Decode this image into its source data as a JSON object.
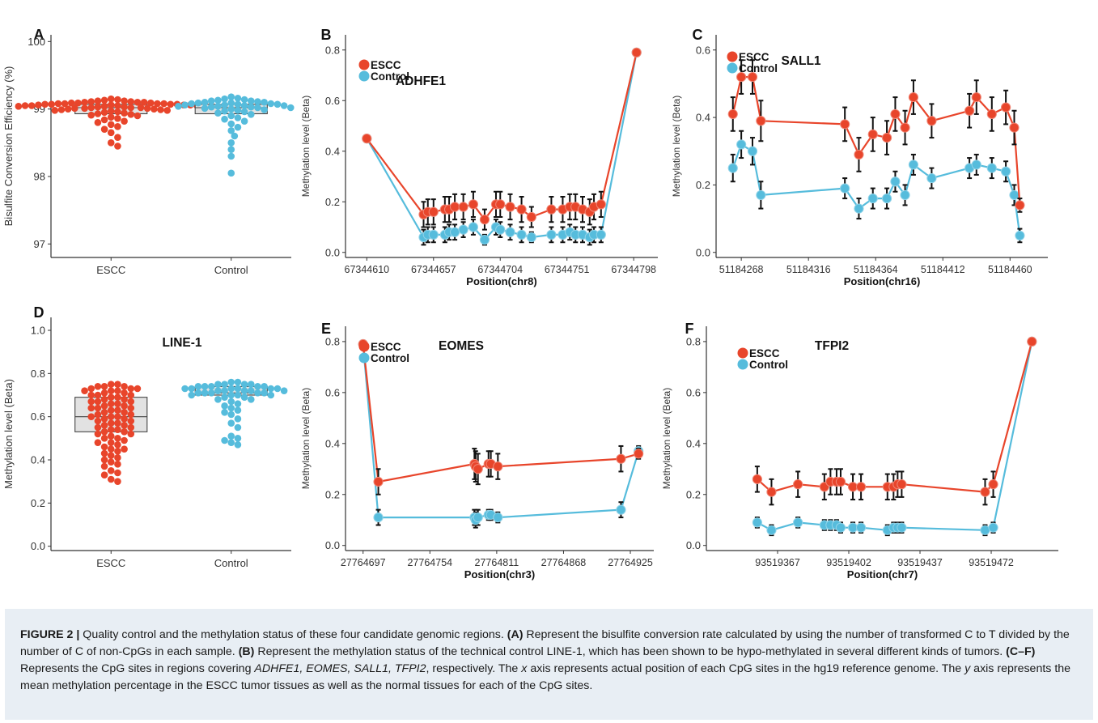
{
  "caption": {
    "figure_label": "FIGURE 2 |",
    "s1": " Quality control and the methylation status of these four candidate genomic regions. ",
    "a_ref": "(A)",
    "s2": " Represent the bisulfite conversion rate calculated by using the number of transformed C to T divided by the number of C of non-CpGs in each sample. ",
    "b_ref": "(B)",
    "s3": " Represent the methylation status of the technical control LINE-1, which has been shown to be hypo-methylated in several different kinds of tumors. ",
    "cf_ref": "(C–F)",
    "s4": " Represents the CpG sites in regions covering ",
    "genes": "ADHFE1, EOMES, SALL1, TFPI2",
    "s5": ", respectively. The ",
    "x_italic": "x",
    "s6": " axis represents actual position of each CpG sites in the hg19 reference genome. The ",
    "y_italic": "y",
    "s7": " axis represents the mean methylation percentage in the ESCC tumor tissues as well as the normal tissues for each of the CpG sites."
  },
  "colors": {
    "escc": "#e8452b",
    "control": "#56bcdc",
    "box_fill": "#e2e2e2",
    "error": "#111111"
  },
  "chart_data": [
    {
      "panel": "A",
      "type": "scatter",
      "subtype": "beeswarm-box",
      "title": "",
      "xlabel": "",
      "ylabel": "Bisulfite Conversion Efficiency (%)",
      "ylim": [
        96.8,
        100.1
      ],
      "yticks": [
        97,
        98,
        99,
        100
      ],
      "categories": [
        "ESCC",
        "Control"
      ],
      "series": [
        {
          "name": "ESCC",
          "color": "#e8452b",
          "box": {
            "q1": 98.93,
            "median": 99.02,
            "q3": 99.07
          },
          "values": [
            99.15,
            99.14,
            99.13,
            99.12,
            99.12,
            99.11,
            99.11,
            99.1,
            99.1,
            99.1,
            99.09,
            99.09,
            99.09,
            99.08,
            99.08,
            99.08,
            99.08,
            99.07,
            99.07,
            99.07,
            99.07,
            99.06,
            99.06,
            99.06,
            99.06,
            99.05,
            99.05,
            99.05,
            99.05,
            99.04,
            99.04,
            99.04,
            99.03,
            99.03,
            99.03,
            99.02,
            99.02,
            99.02,
            99.01,
            99.01,
            99.01,
            99.0,
            99.0,
            98.99,
            98.99,
            98.98,
            98.98,
            98.97,
            98.96,
            98.95,
            98.94,
            98.93,
            98.92,
            98.91,
            98.9,
            98.88,
            98.86,
            98.84,
            98.82,
            98.8,
            98.77,
            98.74,
            98.7,
            98.65,
            98.58,
            98.5,
            98.45
          ]
        },
        {
          "name": "Control",
          "color": "#56bcdc",
          "box": {
            "q1": 98.93,
            "median": 99.02,
            "q3": 99.07
          },
          "values": [
            99.18,
            99.16,
            99.15,
            99.14,
            99.13,
            99.12,
            99.12,
            99.11,
            99.1,
            99.1,
            99.09,
            99.09,
            99.08,
            99.08,
            99.07,
            99.07,
            99.06,
            99.06,
            99.05,
            99.05,
            99.04,
            99.04,
            99.03,
            99.03,
            99.02,
            99.02,
            99.01,
            99.0,
            98.99,
            98.98,
            98.97,
            98.96,
            98.94,
            98.92,
            98.9,
            98.87,
            98.85,
            98.82,
            98.78,
            98.73,
            98.68,
            98.6,
            98.5,
            98.4,
            98.3,
            98.05
          ]
        }
      ]
    },
    {
      "panel": "B",
      "type": "line",
      "title": "ADHFE1",
      "xlabel": "Position(chr8)",
      "ylabel": "Methylation level (Beta)",
      "xlim": [
        67344595,
        67344815
      ],
      "ylim": [
        -0.02,
        0.86
      ],
      "xticks": [
        67344610,
        67344657,
        67344704,
        67344751,
        67344798
      ],
      "yticks": [
        0.0,
        0.2,
        0.4,
        0.6,
        0.8
      ],
      "ytick_format": "1",
      "legend": "top-left",
      "series": [
        {
          "name": "ESCC",
          "color": "#e8452b",
          "x": [
            67344610,
            67344650,
            67344653,
            67344657,
            67344665,
            67344668,
            67344672,
            67344678,
            67344685,
            67344693,
            67344701,
            67344704,
            67344711,
            67344719,
            67344726,
            67344740,
            67344748,
            67344753,
            67344757,
            67344762,
            67344767,
            67344770,
            67344775,
            67344800
          ],
          "y": [
            0.45,
            0.15,
            0.16,
            0.16,
            0.17,
            0.17,
            0.18,
            0.18,
            0.19,
            0.13,
            0.19,
            0.19,
            0.18,
            0.17,
            0.14,
            0.17,
            0.17,
            0.18,
            0.18,
            0.17,
            0.16,
            0.18,
            0.19,
            0.79
          ],
          "err": [
            0,
            0.05,
            0.05,
            0.05,
            0.05,
            0.05,
            0.05,
            0.05,
            0.05,
            0.04,
            0.05,
            0.05,
            0.05,
            0.05,
            0.04,
            0.05,
            0.05,
            0.05,
            0.05,
            0.05,
            0.05,
            0.05,
            0.05,
            0
          ]
        },
        {
          "name": "Control",
          "color": "#56bcdc",
          "x": [
            67344610,
            67344650,
            67344653,
            67344657,
            67344665,
            67344668,
            67344672,
            67344678,
            67344685,
            67344693,
            67344701,
            67344704,
            67344711,
            67344719,
            67344726,
            67344740,
            67344748,
            67344753,
            67344757,
            67344762,
            67344767,
            67344770,
            67344775,
            67344800
          ],
          "y": [
            0.45,
            0.06,
            0.07,
            0.07,
            0.07,
            0.08,
            0.08,
            0.09,
            0.1,
            0.05,
            0.1,
            0.09,
            0.08,
            0.07,
            0.06,
            0.07,
            0.07,
            0.08,
            0.07,
            0.07,
            0.06,
            0.07,
            0.07,
            0.79
          ],
          "err": [
            0,
            0.03,
            0.03,
            0.03,
            0.03,
            0.03,
            0.03,
            0.03,
            0.03,
            0.02,
            0.03,
            0.03,
            0.03,
            0.03,
            0.02,
            0.03,
            0.03,
            0.03,
            0.03,
            0.03,
            0.03,
            0.03,
            0.03,
            0
          ]
        }
      ]
    },
    {
      "panel": "C",
      "type": "line",
      "title": "SALL1",
      "xlabel": "Position(chr16)",
      "ylabel": "Methylation level (Beta)",
      "xlim": [
        51184250,
        51184487
      ],
      "ylim": [
        -0.015,
        0.645
      ],
      "xticks": [
        51184268,
        51184316,
        51184364,
        51184412,
        51184460
      ],
      "yticks": [
        0.0,
        0.2,
        0.4,
        0.6
      ],
      "ytick_format": "1",
      "legend": "top-left",
      "series": [
        {
          "name": "ESCC",
          "color": "#e8452b",
          "x": [
            51184262,
            51184268,
            51184276,
            51184282,
            51184342,
            51184352,
            51184362,
            51184372,
            51184378,
            51184385,
            51184391,
            51184404,
            51184431,
            51184436,
            51184447,
            51184457,
            51184463,
            51184467
          ],
          "y": [
            0.41,
            0.52,
            0.52,
            0.39,
            0.38,
            0.29,
            0.35,
            0.34,
            0.41,
            0.37,
            0.46,
            0.39,
            0.42,
            0.46,
            0.41,
            0.43,
            0.37,
            0.14
          ],
          "err": [
            0.05,
            0.05,
            0.05,
            0.06,
            0.05,
            0.05,
            0.05,
            0.05,
            0.05,
            0.05,
            0.05,
            0.05,
            0.05,
            0.05,
            0.05,
            0.05,
            0.05,
            0.02
          ]
        },
        {
          "name": "Control",
          "color": "#56bcdc",
          "x": [
            51184262,
            51184268,
            51184276,
            51184282,
            51184342,
            51184352,
            51184362,
            51184372,
            51184378,
            51184385,
            51184391,
            51184404,
            51184431,
            51184436,
            51184447,
            51184457,
            51184463,
            51184467
          ],
          "y": [
            0.25,
            0.32,
            0.3,
            0.17,
            0.19,
            0.13,
            0.16,
            0.16,
            0.21,
            0.17,
            0.26,
            0.22,
            0.25,
            0.26,
            0.25,
            0.24,
            0.17,
            0.05
          ],
          "err": [
            0.04,
            0.04,
            0.04,
            0.04,
            0.03,
            0.03,
            0.03,
            0.03,
            0.03,
            0.03,
            0.03,
            0.03,
            0.03,
            0.03,
            0.03,
            0.03,
            0.03,
            0.02
          ]
        }
      ]
    },
    {
      "panel": "D",
      "type": "scatter",
      "subtype": "beeswarm-box",
      "title": "LINE-1",
      "xlabel": "",
      "ylabel": "Methylation level (Beta)",
      "ylim": [
        -0.02,
        1.06
      ],
      "yticks": [
        0.0,
        0.2,
        0.4,
        0.6,
        0.8,
        1.0
      ],
      "ytick_format": "1",
      "categories": [
        "ESCC",
        "Control"
      ],
      "series": [
        {
          "name": "ESCC",
          "color": "#e8452b",
          "box": {
            "q1": 0.53,
            "median": 0.6,
            "q3": 0.69
          },
          "values": [
            0.75,
            0.75,
            0.74,
            0.74,
            0.74,
            0.73,
            0.73,
            0.73,
            0.72,
            0.72,
            0.72,
            0.71,
            0.71,
            0.7,
            0.7,
            0.7,
            0.69,
            0.69,
            0.68,
            0.68,
            0.67,
            0.67,
            0.67,
            0.66,
            0.66,
            0.65,
            0.65,
            0.64,
            0.64,
            0.64,
            0.63,
            0.63,
            0.62,
            0.62,
            0.61,
            0.61,
            0.6,
            0.6,
            0.6,
            0.59,
            0.59,
            0.58,
            0.58,
            0.57,
            0.57,
            0.56,
            0.56,
            0.55,
            0.55,
            0.54,
            0.54,
            0.53,
            0.53,
            0.52,
            0.52,
            0.51,
            0.5,
            0.5,
            0.49,
            0.48,
            0.48,
            0.47,
            0.46,
            0.45,
            0.45,
            0.44,
            0.43,
            0.42,
            0.41,
            0.4,
            0.39,
            0.38,
            0.37,
            0.35,
            0.34,
            0.33,
            0.31,
            0.3
          ]
        },
        {
          "name": "Control",
          "color": "#56bcdc",
          "box": {
            "q1": 0.7,
            "median": 0.71,
            "q3": 0.74
          },
          "values": [
            0.76,
            0.76,
            0.75,
            0.75,
            0.75,
            0.75,
            0.74,
            0.74,
            0.74,
            0.74,
            0.74,
            0.73,
            0.73,
            0.73,
            0.73,
            0.73,
            0.73,
            0.72,
            0.72,
            0.72,
            0.72,
            0.72,
            0.71,
            0.71,
            0.71,
            0.71,
            0.71,
            0.7,
            0.7,
            0.7,
            0.7,
            0.69,
            0.69,
            0.68,
            0.68,
            0.67,
            0.66,
            0.65,
            0.64,
            0.63,
            0.62,
            0.61,
            0.59,
            0.57,
            0.55,
            0.51,
            0.5,
            0.49,
            0.48,
            0.47
          ]
        }
      ]
    },
    {
      "panel": "E",
      "type": "line",
      "title": "EOMES",
      "xlabel": "Position(chr3)",
      "ylabel": "Methylation level (Beta)",
      "xlim": [
        27764682,
        27764945
      ],
      "ylim": [
        -0.02,
        0.86
      ],
      "xticks": [
        27764697,
        27764754,
        27764811,
        27764868,
        27764925
      ],
      "yticks": [
        0.0,
        0.2,
        0.4,
        0.6,
        0.8
      ],
      "ytick_format": "1",
      "legend": "top-left",
      "series": [
        {
          "name": "ESCC",
          "color": "#e8452b",
          "x": [
            27764697,
            27764710,
            27764792,
            27764793,
            27764795,
            27764804,
            27764806,
            27764812,
            27764917,
            27764932
          ],
          "y": [
            0.79,
            0.25,
            0.32,
            0.31,
            0.3,
            0.32,
            0.32,
            0.31,
            0.34,
            0.36
          ],
          "err": [
            0,
            0.05,
            0.06,
            0.06,
            0.06,
            0.05,
            0.05,
            0.05,
            0.05,
            0.02
          ]
        },
        {
          "name": "Control",
          "color": "#56bcdc",
          "x": [
            27764697,
            27764710,
            27764792,
            27764793,
            27764795,
            27764804,
            27764806,
            27764812,
            27764917,
            27764932
          ],
          "y": [
            0.79,
            0.11,
            0.11,
            0.1,
            0.11,
            0.12,
            0.12,
            0.11,
            0.14,
            0.37
          ],
          "err": [
            0,
            0.03,
            0.03,
            0.03,
            0.03,
            0.02,
            0.02,
            0.02,
            0.03,
            0.02
          ]
        }
      ]
    },
    {
      "panel": "F",
      "type": "line",
      "title": "TFPI2",
      "xlabel": "Position(chr7)",
      "ylabel": "Methylation level (Beta)",
      "xlim": [
        93519332,
        93519505
      ],
      "ylim": [
        -0.02,
        0.86
      ],
      "xticks": [
        93519367,
        93519402,
        93519437,
        93519472
      ],
      "yticks": [
        0.0,
        0.2,
        0.4,
        0.6,
        0.8
      ],
      "ytick_format": "1",
      "legend": "top-left",
      "series": [
        {
          "name": "ESCC",
          "color": "#e8452b",
          "x": [
            93519357,
            93519364,
            93519377,
            93519390,
            93519393,
            93519396,
            93519398,
            93519404,
            93519408,
            93519421,
            93519424,
            93519426,
            93519428,
            93519469,
            93519473,
            93519492
          ],
          "y": [
            0.26,
            0.21,
            0.24,
            0.23,
            0.25,
            0.25,
            0.25,
            0.23,
            0.23,
            0.23,
            0.23,
            0.24,
            0.24,
            0.21,
            0.24,
            0.8
          ],
          "err": [
            0.05,
            0.05,
            0.05,
            0.05,
            0.05,
            0.05,
            0.05,
            0.05,
            0.05,
            0.05,
            0.05,
            0.05,
            0.05,
            0.05,
            0.05,
            0
          ]
        },
        {
          "name": "Control",
          "color": "#56bcdc",
          "x": [
            93519357,
            93519364,
            93519377,
            93519390,
            93519393,
            93519396,
            93519398,
            93519404,
            93519408,
            93519421,
            93519424,
            93519426,
            93519428,
            93519469,
            93519473,
            93519492
          ],
          "y": [
            0.09,
            0.06,
            0.09,
            0.08,
            0.08,
            0.08,
            0.07,
            0.07,
            0.07,
            0.06,
            0.07,
            0.07,
            0.07,
            0.06,
            0.07,
            0.8
          ],
          "err": [
            0.02,
            0.02,
            0.02,
            0.02,
            0.02,
            0.02,
            0.02,
            0.02,
            0.02,
            0.02,
            0.02,
            0.02,
            0.02,
            0.02,
            0.02,
            0
          ]
        }
      ]
    }
  ]
}
